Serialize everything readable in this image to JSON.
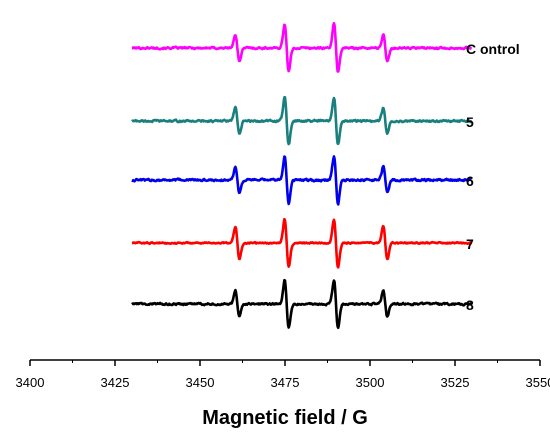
{
  "chart_data": {
    "type": "line",
    "title": "",
    "xlabel": "Magnetic field / G",
    "ylabel": "",
    "xlim": [
      3400,
      3550
    ],
    "x_ticks": [
      3400,
      3425,
      3450,
      3475,
      3500,
      3525,
      3550
    ],
    "x_tick_labels": [
      "3400",
      "3425",
      "3450",
      "3475",
      "3500",
      "3525",
      "3550"
    ],
    "x_data_range": [
      3430,
      3530
    ],
    "grid": false,
    "legend": "inline labels right of traces",
    "peak_positions": [
      3461,
      3475.5,
      3490,
      3504.5
    ],
    "series": [
      {
        "name": "C ontrol",
        "color": "#ff00ff",
        "amplitudes": [
          0.55,
          1.0,
          1.0,
          0.55
        ],
        "noise": 0.07
      },
      {
        "name": "5",
        "color": "#1a7f7f",
        "amplitudes": [
          0.55,
          1.0,
          1.0,
          0.55
        ],
        "noise": 0.07
      },
      {
        "name": "6",
        "color": "#0000ee",
        "amplitudes": [
          0.55,
          1.0,
          1.0,
          0.55
        ],
        "noise": 0.08
      },
      {
        "name": "7",
        "color": "#ff0000",
        "amplitudes": [
          0.7,
          1.0,
          1.0,
          0.7
        ],
        "noise": 0.05
      },
      {
        "name": "8",
        "color": "#000000",
        "amplitudes": [
          0.55,
          1.0,
          1.0,
          0.55
        ],
        "noise": 0.07
      }
    ]
  }
}
